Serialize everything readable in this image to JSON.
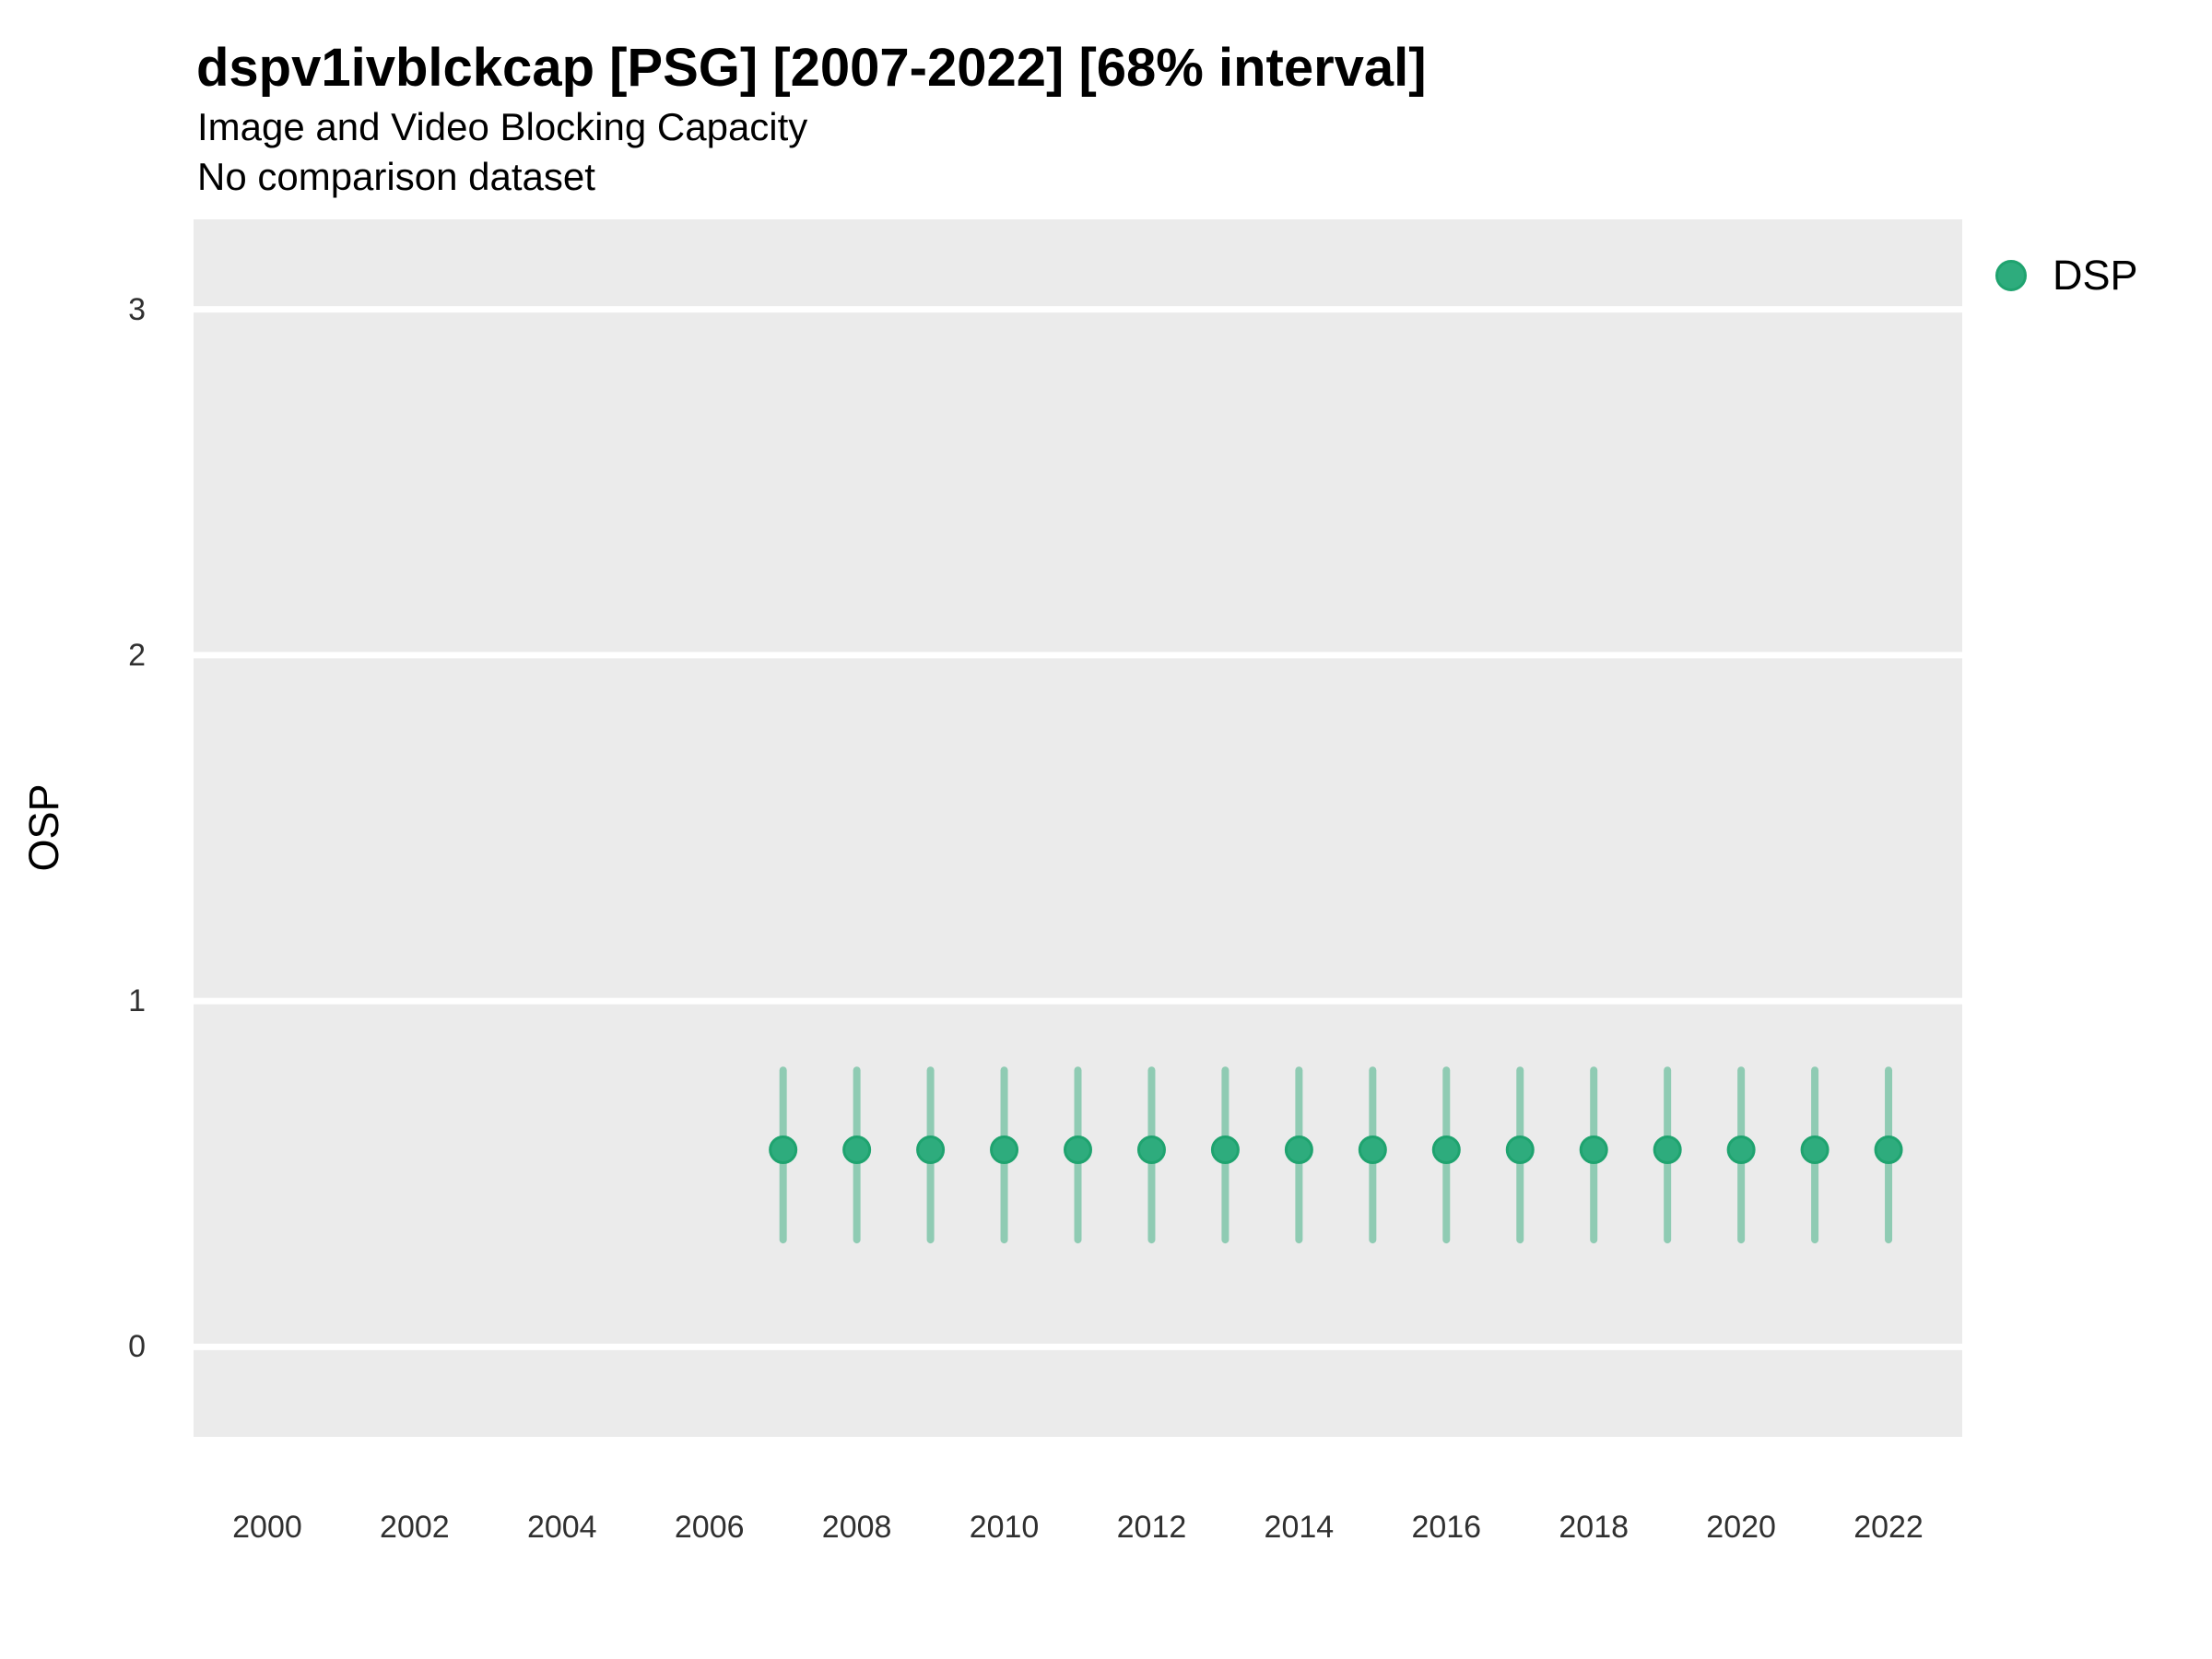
{
  "chart_data": {
    "type": "scatter",
    "variant": "pointrange",
    "title": "dspv1ivblckcap [PSG] [2007-2022] [68% interval]",
    "subtitle": "Image and Video Blocking Capacity",
    "note": "No comparison dataset",
    "xlabel": "",
    "ylabel": "OSP",
    "interval_level": "68%",
    "grid": "horizontal-major-only",
    "legend_position": "right",
    "panel_background": "#EBEBEB",
    "gridline_color": "#FFFFFF",
    "x_ticks": [
      2000,
      2002,
      2004,
      2006,
      2008,
      2010,
      2012,
      2014,
      2016,
      2018,
      2020,
      2022
    ],
    "y_ticks": [
      0,
      1,
      2,
      3
    ],
    "xlim": [
      1999,
      2023
    ],
    "ylim": [
      -0.26,
      3.26
    ],
    "series": [
      {
        "name": "DSP",
        "marker": "circle",
        "color": "#2EAC7D",
        "marker_stroke": "#1FA36F",
        "errorbar_color": "#8FCBB3",
        "points": [
          {
            "year": 2007,
            "estimate": 0.57,
            "lower": 0.31,
            "upper": 0.8
          },
          {
            "year": 2008,
            "estimate": 0.57,
            "lower": 0.31,
            "upper": 0.8
          },
          {
            "year": 2009,
            "estimate": 0.57,
            "lower": 0.31,
            "upper": 0.8
          },
          {
            "year": 2010,
            "estimate": 0.57,
            "lower": 0.31,
            "upper": 0.8
          },
          {
            "year": 2011,
            "estimate": 0.57,
            "lower": 0.31,
            "upper": 0.8
          },
          {
            "year": 2012,
            "estimate": 0.57,
            "lower": 0.31,
            "upper": 0.8
          },
          {
            "year": 2013,
            "estimate": 0.57,
            "lower": 0.31,
            "upper": 0.8
          },
          {
            "year": 2014,
            "estimate": 0.57,
            "lower": 0.31,
            "upper": 0.8
          },
          {
            "year": 2015,
            "estimate": 0.57,
            "lower": 0.31,
            "upper": 0.8
          },
          {
            "year": 2016,
            "estimate": 0.57,
            "lower": 0.31,
            "upper": 0.8
          },
          {
            "year": 2017,
            "estimate": 0.57,
            "lower": 0.31,
            "upper": 0.8
          },
          {
            "year": 2018,
            "estimate": 0.57,
            "lower": 0.31,
            "upper": 0.8
          },
          {
            "year": 2019,
            "estimate": 0.57,
            "lower": 0.31,
            "upper": 0.8
          },
          {
            "year": 2020,
            "estimate": 0.57,
            "lower": 0.31,
            "upper": 0.8
          },
          {
            "year": 2021,
            "estimate": 0.57,
            "lower": 0.31,
            "upper": 0.8
          },
          {
            "year": 2022,
            "estimate": 0.57,
            "lower": 0.31,
            "upper": 0.8
          }
        ]
      }
    ]
  }
}
